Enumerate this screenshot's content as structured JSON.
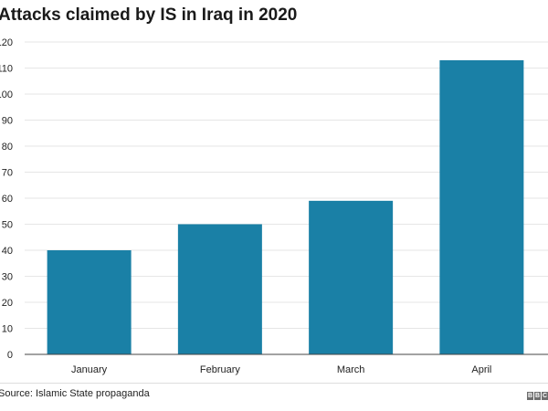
{
  "chart_data": {
    "type": "bar",
    "title": "Attacks claimed by IS in Iraq in 2020",
    "categories": [
      "January",
      "February",
      "March",
      "April"
    ],
    "values": [
      40,
      50,
      59,
      113
    ],
    "ylim": [
      0,
      120
    ],
    "yticks": [
      0,
      10,
      20,
      30,
      40,
      50,
      60,
      70,
      80,
      90,
      100,
      110,
      120
    ],
    "grid": true,
    "bar_color": "#1a80a6",
    "grid_color": "#e6e6e6"
  },
  "footer": {
    "source": "Source: Islamic State propaganda",
    "brand_letters": [
      "B",
      "B",
      "C"
    ]
  }
}
